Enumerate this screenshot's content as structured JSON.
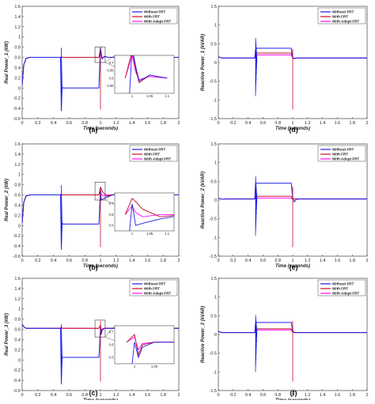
{
  "colors": {
    "without_frt": "#1f1fe6",
    "with_frt": "#c0102a",
    "with_adapt_frt": "#ff10ff"
  },
  "chart_data": [
    {
      "id": "a",
      "panel_label": "(a)",
      "type": "line",
      "xlabel": "Time (seconds)",
      "ylabel": "Real Power_1 (kW)",
      "xlim": [
        0,
        2
      ],
      "ylim": [
        -0.6,
        1.6
      ],
      "xticks": [
        "0",
        "0.2",
        "0.4",
        "0.6",
        "0.8",
        "1",
        "1.2",
        "1.4",
        "1.6",
        "1.8",
        "2"
      ],
      "yticks": [
        "-0.6",
        "-0.4",
        "-0.2",
        "0",
        "0.2",
        "0.4",
        "0.6",
        "0.8",
        "1",
        "1.2",
        "1.4",
        "1.6"
      ],
      "legend": [
        "Without FRT",
        "With FRT",
        "With Adapt FRT"
      ],
      "legend_position": "top-right",
      "series": [
        {
          "name": "Without FRT",
          "x": [
            0,
            0.02,
            0.05,
            0.1,
            0.2,
            0.49,
            0.5,
            0.51,
            0.52,
            0.55,
            0.98,
            1.0,
            1.01,
            1.02,
            1.05,
            1.1,
            1.2,
            2.0
          ],
          "y": [
            0.05,
            0.45,
            0.58,
            0.6,
            0.6,
            0.6,
            -0.45,
            0.02,
            0.0,
            0.0,
            0.0,
            0.8,
            0.68,
            0.58,
            0.62,
            0.6,
            0.6,
            0.6
          ],
          "spike": {
            "x": [
              0.5,
              0.51
            ],
            "y": [
              -0.45,
              0.85
            ]
          }
        },
        {
          "name": "With FRT",
          "x": [
            0,
            0.02,
            0.05,
            0.1,
            0.49,
            0.5,
            0.51,
            0.55,
            0.98,
            1.0,
            1.01,
            1.02,
            1.05,
            1.1,
            2.0
          ],
          "y": [
            0.05,
            0.45,
            0.58,
            0.6,
            0.6,
            0.6,
            0.6,
            0.6,
            0.6,
            0.78,
            0.66,
            0.57,
            0.62,
            0.6,
            0.6
          ]
        },
        {
          "name": "With Adapt FRT",
          "x": [
            0,
            0.02,
            0.05,
            0.1,
            0.49,
            0.5,
            0.51,
            0.55,
            0.98,
            1.0,
            1.01,
            1.02,
            1.05,
            1.1,
            2.0
          ],
          "y": [
            0.05,
            0.45,
            0.58,
            0.6,
            0.6,
            0.62,
            0.6,
            0.6,
            0.6,
            0.75,
            0.64,
            0.59,
            0.61,
            0.6,
            0.6
          ]
        }
      ],
      "zoom": {
        "xlim": [
          0.95,
          1.12
        ],
        "ylim": [
          0.5,
          0.75
        ],
        "xticks": [
          "1",
          "1.05",
          "1.1"
        ],
        "yticks": [
          "0.7",
          "0.65",
          "0.6",
          "0.55"
        ]
      }
    },
    {
      "id": "d",
      "panel_label": "(d)",
      "type": "line",
      "xlabel": "Time (seconds)",
      "ylabel": "Reactive Power_1 (kVAR)",
      "xlim": [
        0,
        2
      ],
      "ylim": [
        -1.5,
        1.5
      ],
      "xticks": [
        "0",
        "0.2",
        "0.4",
        "0.6",
        "0.8",
        "1",
        "1.2",
        "1.4",
        "1.6",
        "1.8",
        "2"
      ],
      "yticks": [
        "-1.5",
        "-1",
        "-0.5",
        "0",
        "0.5",
        "1",
        "1.5"
      ],
      "legend": [
        "Without FRT",
        "With FRT",
        "With Adapt FRT"
      ],
      "legend_position": "top-right",
      "series": [
        {
          "name": "Without FRT",
          "x": [
            0,
            0.05,
            0.1,
            0.49,
            0.5,
            0.52,
            0.55,
            0.98,
            1.0,
            1.02,
            1.05,
            2.0
          ],
          "y": [
            0.15,
            0.12,
            0.12,
            0.12,
            0.35,
            0.38,
            0.38,
            0.38,
            0.12,
            0.1,
            0.12,
            0.12
          ],
          "spike": {
            "x": [
              0.5,
              0.52
            ],
            "y": [
              -0.9,
              0.7
            ]
          }
        },
        {
          "name": "With FRT",
          "x": [
            0,
            0.05,
            0.1,
            0.49,
            0.5,
            0.52,
            0.55,
            0.98,
            1.0,
            1.02,
            1.05,
            2.0
          ],
          "y": [
            0.15,
            0.12,
            0.12,
            0.12,
            0.25,
            0.25,
            0.25,
            0.25,
            0.12,
            0.1,
            0.12,
            0.12
          ]
        },
        {
          "name": "With Adapt FRT",
          "x": [
            0,
            0.05,
            0.1,
            0.49,
            0.5,
            0.52,
            0.55,
            0.98,
            1.0,
            1.02,
            1.05,
            2.0
          ],
          "y": [
            0.15,
            0.12,
            0.12,
            0.12,
            0.2,
            0.2,
            0.2,
            0.2,
            0.12,
            0.12,
            0.12,
            0.12
          ]
        }
      ]
    },
    {
      "id": "b",
      "panel_label": "(b)",
      "type": "line",
      "xlabel": "Time (seconds)",
      "ylabel": "Real Power_2 (kW)",
      "xlim": [
        0,
        2
      ],
      "ylim": [
        -0.6,
        1.6
      ],
      "xticks": [
        "0",
        "0.2",
        "0.4",
        "0.6",
        "0.8",
        "1",
        "1.2",
        "1.4",
        "1.6",
        "1.8",
        "2"
      ],
      "yticks": [
        "-0.6",
        "-0.4",
        "-0.2",
        "0",
        "0.2",
        "0.4",
        "0.6",
        "0.8",
        "1",
        "1.2",
        "1.4",
        "1.6"
      ],
      "legend": [
        "Without FRT",
        "With FRT",
        "With Adapt FRT"
      ],
      "legend_position": "top-right",
      "series": [
        {
          "name": "Without FRT",
          "x": [
            0,
            0.02,
            0.05,
            0.1,
            0.49,
            0.5,
            0.51,
            0.52,
            0.55,
            0.98,
            1.0,
            1.01,
            1.03,
            1.08,
            1.15,
            2.0
          ],
          "y": [
            0.05,
            0.45,
            0.58,
            0.6,
            0.6,
            -0.45,
            0.05,
            0.03,
            0.03,
            0.03,
            0.7,
            0.5,
            0.52,
            0.56,
            0.6,
            0.6
          ],
          "spike": {
            "x": [
              0.5,
              0.51
            ],
            "y": [
              -0.48,
              0.85
            ]
          }
        },
        {
          "name": "With FRT",
          "x": [
            0,
            0.02,
            0.05,
            0.1,
            0.49,
            0.5,
            0.51,
            0.55,
            0.98,
            1.0,
            1.01,
            1.03,
            1.08,
            1.15,
            2.0
          ],
          "y": [
            0.05,
            0.45,
            0.58,
            0.6,
            0.6,
            0.6,
            0.6,
            0.6,
            0.6,
            0.75,
            0.72,
            0.65,
            0.58,
            0.6,
            0.6
          ]
        },
        {
          "name": "With Adapt FRT",
          "x": [
            0,
            0.02,
            0.05,
            0.1,
            0.49,
            0.5,
            0.51,
            0.55,
            0.98,
            1.0,
            1.01,
            1.03,
            1.08,
            1.15,
            2.0
          ],
          "y": [
            0.05,
            0.45,
            0.58,
            0.6,
            0.6,
            0.62,
            0.6,
            0.6,
            0.6,
            0.68,
            0.62,
            0.58,
            0.6,
            0.6,
            0.6
          ]
        }
      ],
      "zoom": {
        "xlim": [
          0.95,
          1.12
        ],
        "ylim": [
          0.45,
          0.8
        ],
        "xticks": [
          "1",
          "1.05",
          "1.1"
        ],
        "yticks": [
          "0.7",
          "0.6",
          "0.5"
        ]
      }
    },
    {
      "id": "e",
      "panel_label": "(e)",
      "type": "line",
      "xlabel": "Time (seconds)",
      "ylabel": "Reactive Power_2 (kVAR)",
      "xlim": [
        0,
        2
      ],
      "ylim": [
        -1.5,
        1.5
      ],
      "xticks": [
        "0",
        "0.2",
        "0.4",
        "0.6",
        "0.8",
        "1",
        "1.2",
        "1.4",
        "1.6",
        "1.8",
        "2"
      ],
      "yticks": [
        "-1.5",
        "-1",
        "-0.5",
        "0",
        "0.5",
        "1",
        "1.5"
      ],
      "legend": [
        "Without FRT",
        "With FRT",
        "With Adapt FRT"
      ],
      "legend_position": "top-right",
      "series": [
        {
          "name": "Without FRT",
          "x": [
            0,
            0.05,
            0.1,
            0.49,
            0.5,
            0.52,
            0.55,
            0.98,
            1.0,
            1.02,
            1.05,
            1.1,
            2.0
          ],
          "y": [
            0.05,
            0.02,
            0.03,
            0.03,
            0.45,
            0.45,
            0.45,
            0.45,
            0.05,
            -0.05,
            0.02,
            0.03,
            0.03
          ],
          "spike": {
            "x": [
              0.5,
              0.52
            ],
            "y": [
              -0.95,
              0.68
            ]
          }
        },
        {
          "name": "With FRT",
          "x": [
            0,
            0.05,
            0.1,
            0.49,
            0.5,
            0.52,
            0.55,
            0.98,
            1.0,
            1.02,
            1.05,
            1.1,
            2.0
          ],
          "y": [
            0.05,
            0.02,
            0.03,
            0.03,
            0.1,
            0.1,
            0.1,
            0.1,
            0.03,
            0.03,
            0.03,
            0.03,
            0.03
          ]
        },
        {
          "name": "With Adapt FRT",
          "x": [
            0,
            0.05,
            0.1,
            0.49,
            0.5,
            0.52,
            0.55,
            0.98,
            1.0,
            1.02,
            1.05,
            1.1,
            2.0
          ],
          "y": [
            0.05,
            0.02,
            0.03,
            0.03,
            0.05,
            0.05,
            0.05,
            0.05,
            0.03,
            0.03,
            0.03,
            0.03,
            0.03
          ]
        }
      ]
    },
    {
      "id": "c",
      "panel_label": "(c)",
      "type": "line",
      "xlabel": "Time (seconds)",
      "ylabel": "Real Power_3 (kW)",
      "xlim": [
        0,
        2
      ],
      "ylim": [
        -0.6,
        1.6
      ],
      "xticks": [
        "0",
        "0.2",
        "0.4",
        "0.6",
        "0.8",
        "1",
        "1.2",
        "1.4",
        "1.6",
        "1.8",
        "2"
      ],
      "yticks": [
        "-0.6",
        "-0.4",
        "-0.2",
        "0",
        "0.2",
        "0.4",
        "0.6",
        "0.8",
        "1",
        "1.2",
        "1.4",
        "1.6"
      ],
      "legend": [
        "Without FRT",
        "With FRT",
        "With Adapt FRT"
      ],
      "legend_position": "top-right",
      "series": [
        {
          "name": "Without FRT",
          "x": [
            0,
            0.02,
            0.05,
            0.1,
            0.49,
            0.5,
            0.51,
            0.52,
            0.55,
            0.98,
            1.0,
            1.01,
            1.02,
            1.05,
            1.1,
            2.0
          ],
          "y": [
            0.7,
            0.65,
            0.62,
            0.62,
            0.62,
            -0.45,
            0.05,
            0.05,
            0.05,
            0.05,
            0.62,
            0.5,
            0.58,
            0.62,
            0.62,
            0.62
          ],
          "spike": {
            "x": [
              0.5,
              0.51
            ],
            "y": [
              -0.48,
              0.75
            ]
          }
        },
        {
          "name": "With FRT",
          "x": [
            0,
            0.02,
            0.05,
            0.1,
            0.49,
            0.5,
            0.51,
            0.55,
            0.98,
            1.0,
            1.01,
            1.02,
            1.05,
            1.1,
            2.0
          ],
          "y": [
            0.7,
            0.65,
            0.62,
            0.62,
            0.62,
            0.65,
            0.62,
            0.62,
            0.62,
            0.68,
            0.52,
            0.6,
            0.62,
            0.62,
            0.62
          ]
        },
        {
          "name": "With Adapt FRT",
          "x": [
            0,
            0.02,
            0.05,
            0.1,
            0.49,
            0.5,
            0.51,
            0.55,
            0.98,
            1.0,
            1.01,
            1.02,
            1.05,
            1.1,
            2.0
          ],
          "y": [
            0.7,
            0.65,
            0.62,
            0.62,
            0.62,
            0.63,
            0.62,
            0.62,
            0.62,
            0.66,
            0.56,
            0.61,
            0.62,
            0.62,
            0.62
          ]
        }
      ],
      "zoom": {
        "xlim": [
          0.95,
          1.1
        ],
        "ylim": [
          0.45,
          0.75
        ],
        "xticks": [
          "1",
          "1.05"
        ],
        "yticks": [
          "0.7",
          "0.6",
          "0.5"
        ]
      }
    },
    {
      "id": "f",
      "panel_label": "(f)",
      "type": "line",
      "xlabel": "Time (seconds)",
      "ylabel": "Reactive Power_3 (kVAR)",
      "xlim": [
        0,
        2
      ],
      "ylim": [
        -1.5,
        1.5
      ],
      "xticks": [
        "0",
        "0.2",
        "0.4",
        "0.6",
        "0.8",
        "1",
        "1.2",
        "1.4",
        "1.6",
        "1.8",
        "2"
      ],
      "yticks": [
        "-1.5",
        "-1",
        "-0.5",
        "0",
        "0.5",
        "1",
        "1.5"
      ],
      "legend": [
        "Without FRT",
        "With FRT",
        "With Adapt FRT"
      ],
      "legend_position": "top-right",
      "series": [
        {
          "name": "Without FRT",
          "x": [
            0,
            0.05,
            0.1,
            0.49,
            0.5,
            0.52,
            0.55,
            0.98,
            1.0,
            1.02,
            1.05,
            2.0
          ],
          "y": [
            0.08,
            0.05,
            0.05,
            0.05,
            0.32,
            0.32,
            0.32,
            0.32,
            0.1,
            0.05,
            0.05,
            0.05
          ],
          "spike": {
            "x": [
              0.5,
              0.52
            ],
            "y": [
              -1.0,
              0.55
            ]
          }
        },
        {
          "name": "With FRT",
          "x": [
            0,
            0.05,
            0.1,
            0.49,
            0.5,
            0.52,
            0.55,
            0.98,
            1.0,
            1.02,
            1.05,
            2.0
          ],
          "y": [
            0.08,
            0.05,
            0.05,
            0.05,
            0.15,
            0.15,
            0.15,
            0.15,
            0.08,
            0.05,
            0.05,
            0.05
          ]
        },
        {
          "name": "With Adapt FRT",
          "x": [
            0,
            0.05,
            0.1,
            0.49,
            0.5,
            0.52,
            0.55,
            0.98,
            1.0,
            1.02,
            1.05,
            2.0
          ],
          "y": [
            0.08,
            0.05,
            0.05,
            0.05,
            0.12,
            0.12,
            0.12,
            0.12,
            0.06,
            0.05,
            0.05,
            0.05
          ]
        }
      ]
    }
  ]
}
